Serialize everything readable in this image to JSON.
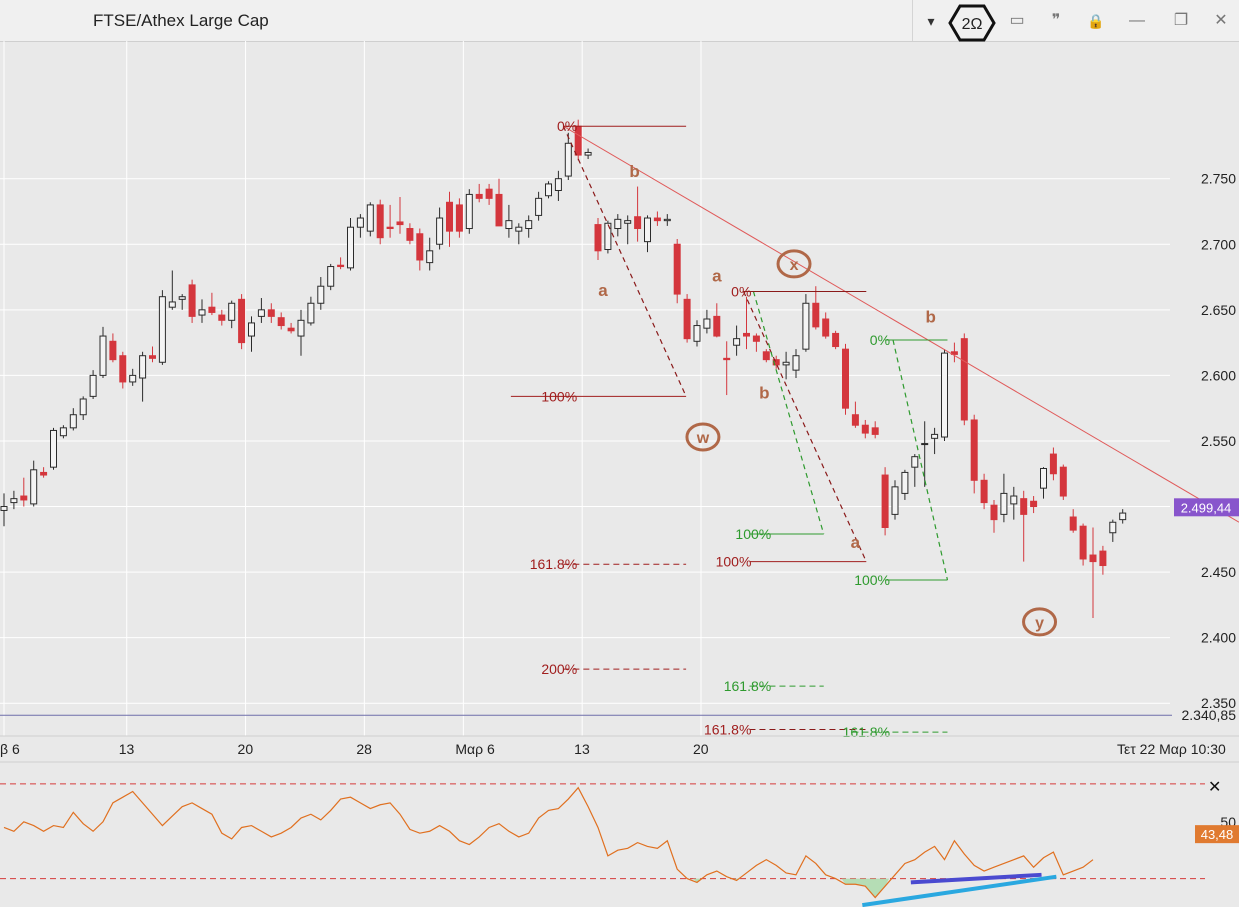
{
  "window": {
    "title": "FTSE/Athex Large Cap",
    "controls": [
      {
        "name": "dropdown",
        "glyph": "▾"
      },
      {
        "name": "2omega",
        "glyph": "2Ω"
      },
      {
        "name": "panel",
        "glyph": "▭"
      },
      {
        "name": "quote",
        "glyph": "❞"
      },
      {
        "name": "lock",
        "glyph": "🔒"
      },
      {
        "name": "minimize",
        "glyph": "—"
      },
      {
        "name": "restore",
        "glyph": "❐"
      },
      {
        "name": "close",
        "glyph": "✕"
      }
    ]
  },
  "chart_data": [
    {
      "type": "candlestick",
      "title": "FTSE/Athex Large Cap",
      "ylim": [
        2.325,
        2.855
      ],
      "y_ticks": [
        "2.750",
        "2.700",
        "2.650",
        "2.600",
        "2.550",
        "2.500",
        "2.450",
        "2.400",
        "2.350"
      ],
      "y_tick_values": [
        2.75,
        2.7,
        2.65,
        2.6,
        2.55,
        2.5,
        2.45,
        2.4,
        2.35
      ],
      "x_ticks": [
        "β 6",
        "13",
        "20",
        "28",
        "Μαρ 6",
        "13",
        "20"
      ],
      "x_tick_candle_index": [
        0,
        12.4,
        24.4,
        36.4,
        46.4,
        58.4,
        70.4
      ],
      "x_end_label": "Τετ 22 Μαρ 10:30",
      "current_price": {
        "label": "2.499,44",
        "value": 2.4994,
        "color": "#8855cc"
      },
      "horizontal_line": {
        "label": "2.340,85",
        "value": 2.34085,
        "color": "#6f6faa"
      },
      "colors": {
        "up": "#2b2b2b",
        "down": "#d4363d",
        "background": "#e9e9e9",
        "grid": "#ffffff"
      },
      "candles": [
        [
          2.497,
          2.51,
          2.485,
          2.5
        ],
        [
          2.503,
          2.512,
          2.498,
          2.506
        ],
        [
          2.508,
          2.522,
          2.5,
          2.505
        ],
        [
          2.502,
          2.535,
          2.5,
          2.528
        ],
        [
          2.526,
          2.53,
          2.522,
          2.524
        ],
        [
          2.53,
          2.56,
          2.528,
          2.558
        ],
        [
          2.554,
          2.562,
          2.552,
          2.56
        ],
        [
          2.56,
          2.575,
          2.558,
          2.57
        ],
        [
          2.57,
          2.584,
          2.566,
          2.582
        ],
        [
          2.584,
          2.604,
          2.582,
          2.6
        ],
        [
          2.6,
          2.637,
          2.598,
          2.63
        ],
        [
          2.626,
          2.632,
          2.61,
          2.612
        ],
        [
          2.615,
          2.618,
          2.59,
          2.595
        ],
        [
          2.595,
          2.605,
          2.592,
          2.6
        ],
        [
          2.598,
          2.618,
          2.58,
          2.615
        ],
        [
          2.615,
          2.622,
          2.61,
          2.613
        ],
        [
          2.61,
          2.665,
          2.608,
          2.66
        ],
        [
          2.652,
          2.68,
          2.65,
          2.656
        ],
        [
          2.658,
          2.662,
          2.65,
          2.66
        ],
        [
          2.669,
          2.673,
          2.64,
          2.645
        ],
        [
          2.646,
          2.658,
          2.64,
          2.65
        ],
        [
          2.652,
          2.663,
          2.646,
          2.648
        ],
        [
          2.646,
          2.65,
          2.638,
          2.642
        ],
        [
          2.642,
          2.657,
          2.636,
          2.655
        ],
        [
          2.658,
          2.662,
          2.62,
          2.625
        ],
        [
          2.63,
          2.645,
          2.618,
          2.64
        ],
        [
          2.645,
          2.659,
          2.64,
          2.65
        ],
        [
          2.65,
          2.655,
          2.64,
          2.645
        ],
        [
          2.644,
          2.648,
          2.635,
          2.638
        ],
        [
          2.636,
          2.64,
          2.632,
          2.634
        ],
        [
          2.63,
          2.65,
          2.615,
          2.642
        ],
        [
          2.64,
          2.66,
          2.638,
          2.655
        ],
        [
          2.655,
          2.675,
          2.65,
          2.668
        ],
        [
          2.668,
          2.685,
          2.665,
          2.683
        ],
        [
          2.684,
          2.69,
          2.681,
          2.683
        ],
        [
          2.682,
          2.72,
          2.68,
          2.713
        ],
        [
          2.713,
          2.723,
          2.705,
          2.72
        ],
        [
          2.71,
          2.732,
          2.706,
          2.73
        ],
        [
          2.73,
          2.734,
          2.7,
          2.705
        ],
        [
          2.713,
          2.73,
          2.705,
          2.712
        ],
        [
          2.717,
          2.736,
          2.708,
          2.715
        ],
        [
          2.712,
          2.716,
          2.7,
          2.703
        ],
        [
          2.708,
          2.712,
          2.68,
          2.688
        ],
        [
          2.686,
          2.705,
          2.68,
          2.695
        ],
        [
          2.7,
          2.728,
          2.696,
          2.72
        ],
        [
          2.732,
          2.74,
          2.698,
          2.71
        ],
        [
          2.73,
          2.735,
          2.705,
          2.71
        ],
        [
          2.712,
          2.742,
          2.708,
          2.738
        ],
        [
          2.738,
          2.746,
          2.732,
          2.735
        ],
        [
          2.742,
          2.746,
          2.73,
          2.735
        ],
        [
          2.738,
          2.75,
          2.716,
          2.714
        ],
        [
          2.712,
          2.73,
          2.705,
          2.718
        ],
        [
          2.71,
          2.716,
          2.7,
          2.713
        ],
        [
          2.712,
          2.722,
          2.705,
          2.718
        ],
        [
          2.722,
          2.74,
          2.718,
          2.735
        ],
        [
          2.737,
          2.748,
          2.735,
          2.746
        ],
        [
          2.741,
          2.756,
          2.733,
          2.75
        ],
        [
          2.752,
          2.785,
          2.749,
          2.777
        ],
        [
          2.79,
          2.795,
          2.764,
          2.768
        ],
        [
          2.768,
          2.773,
          2.765,
          2.77
        ],
        [
          2.715,
          2.72,
          2.688,
          2.695
        ],
        [
          2.696,
          2.718,
          2.693,
          2.716
        ],
        [
          2.712,
          2.723,
          2.706,
          2.719
        ],
        [
          2.716,
          2.722,
          2.7,
          2.718
        ],
        [
          2.721,
          2.744,
          2.702,
          2.712
        ],
        [
          2.702,
          2.722,
          2.694,
          2.72
        ],
        [
          2.72,
          2.725,
          2.714,
          2.718
        ],
        [
          2.718,
          2.723,
          2.714,
          2.719
        ],
        [
          2.7,
          2.704,
          2.655,
          2.662
        ],
        [
          2.658,
          2.662,
          2.625,
          2.628
        ],
        [
          2.626,
          2.642,
          2.622,
          2.638
        ],
        [
          2.636,
          2.65,
          2.632,
          2.643
        ],
        [
          2.645,
          2.655,
          2.629,
          2.63
        ],
        [
          2.613,
          2.626,
          2.585,
          2.612
        ],
        [
          2.623,
          2.638,
          2.615,
          2.628
        ],
        [
          2.632,
          2.66,
          2.62,
          2.63
        ],
        [
          2.63,
          2.632,
          2.618,
          2.626
        ],
        [
          2.618,
          2.62,
          2.61,
          2.612
        ],
        [
          2.612,
          2.615,
          2.605,
          2.608
        ],
        [
          2.608,
          2.618,
          2.597,
          2.61
        ],
        [
          2.604,
          2.62,
          2.598,
          2.615
        ],
        [
          2.62,
          2.662,
          2.618,
          2.655
        ],
        [
          2.655,
          2.668,
          2.635,
          2.637
        ],
        [
          2.643,
          2.648,
          2.628,
          2.63
        ],
        [
          2.632,
          2.634,
          2.62,
          2.622
        ],
        [
          2.62,
          2.624,
          2.57,
          2.575
        ],
        [
          2.57,
          2.58,
          2.56,
          2.562
        ],
        [
          2.562,
          2.566,
          2.552,
          2.556
        ],
        [
          2.56,
          2.565,
          2.552,
          2.555
        ],
        [
          2.524,
          2.53,
          2.478,
          2.484
        ],
        [
          2.494,
          2.52,
          2.49,
          2.515
        ],
        [
          2.51,
          2.528,
          2.505,
          2.526
        ],
        [
          2.53,
          2.54,
          2.515,
          2.538
        ],
        [
          2.548,
          2.565,
          2.515,
          2.548
        ],
        [
          2.552,
          2.56,
          2.54,
          2.555
        ],
        [
          2.553,
          2.62,
          2.55,
          2.617
        ],
        [
          2.618,
          2.625,
          2.61,
          2.616
        ],
        [
          2.628,
          2.632,
          2.562,
          2.566
        ],
        [
          2.566,
          2.57,
          2.51,
          2.52
        ],
        [
          2.52,
          2.525,
          2.498,
          2.503
        ],
        [
          2.501,
          2.505,
          2.48,
          2.49
        ],
        [
          2.494,
          2.525,
          2.488,
          2.51
        ],
        [
          2.502,
          2.515,
          2.49,
          2.508
        ],
        [
          2.506,
          2.512,
          2.458,
          2.494
        ],
        [
          2.504,
          2.508,
          2.495,
          2.5
        ],
        [
          2.514,
          2.53,
          2.506,
          2.529
        ],
        [
          2.54,
          2.545,
          2.52,
          2.525
        ],
        [
          2.53,
          2.532,
          2.505,
          2.508
        ],
        [
          2.492,
          2.498,
          2.48,
          2.482
        ],
        [
          2.485,
          2.487,
          2.455,
          2.46
        ],
        [
          2.463,
          2.484,
          2.415,
          2.458
        ],
        [
          2.466,
          2.47,
          2.448,
          2.455
        ],
        [
          2.48,
          2.49,
          2.473,
          2.488
        ],
        [
          2.49,
          2.498,
          2.487,
          2.495
        ]
      ],
      "annotations": [
        {
          "text": "0%",
          "x": 58.2,
          "y": 2.79,
          "color": "#a01e1e"
        },
        {
          "text": "100%",
          "x": 58.2,
          "y": 2.584,
          "color": "#a01e1e"
        },
        {
          "text": "161.8%",
          "x": 58.2,
          "y": 2.456,
          "color": "#a01e1e"
        },
        {
          "text": "200%",
          "x": 58.2,
          "y": 2.376,
          "color": "#a01e1e"
        },
        {
          "text": "0%",
          "x": 75.8,
          "y": 2.664,
          "color": "#a01e1e"
        },
        {
          "text": "100%",
          "x": 75.8,
          "y": 2.458,
          "color": "#a01e1e"
        },
        {
          "text": "161.8%",
          "x": 75.8,
          "y": 2.33,
          "color": "#a01e1e"
        },
        {
          "text": "0%",
          "x": 89.8,
          "y": 2.627,
          "color": "#2e9a2e"
        },
        {
          "text": "100%",
          "x": 89.8,
          "y": 2.444,
          "color": "#2e9a2e"
        },
        {
          "text": "161.8%",
          "x": 89.8,
          "y": 2.328,
          "color": "#2e9a2e"
        },
        {
          "text": "100%",
          "x": 77.8,
          "y": 2.479,
          "color": "#2e9a2e"
        },
        {
          "text": "161.8%",
          "x": 77.8,
          "y": 2.363,
          "color": "#2e9a2e"
        },
        {
          "text": "b",
          "x": 63.7,
          "y": 2.756,
          "color": "#b06848"
        },
        {
          "text": "a",
          "x": 60.5,
          "y": 2.665,
          "color": "#b06848"
        },
        {
          "text": "a",
          "x": 72.0,
          "y": 2.676,
          "color": "#b06848"
        },
        {
          "text": "b",
          "x": 76.8,
          "y": 2.587,
          "color": "#b06848"
        },
        {
          "text": "b",
          "x": 93.6,
          "y": 2.645,
          "color": "#b06848"
        },
        {
          "text": "a",
          "x": 86.0,
          "y": 2.473,
          "color": "#b06848"
        },
        {
          "text": "w",
          "x": 70.6,
          "y": 2.553,
          "color": "#b06848",
          "circled": true
        },
        {
          "text": "x",
          "x": 79.8,
          "y": 2.685,
          "color": "#b06848",
          "circled": true
        },
        {
          "text": "y",
          "x": 104.6,
          "y": 2.412,
          "color": "#b06848",
          "circled": true
        }
      ]
    },
    {
      "type": "line",
      "series": [
        {
          "values": [
            47,
            45,
            50,
            48,
            45,
            48,
            47,
            55,
            49,
            45,
            50,
            60,
            63,
            66,
            60,
            54,
            48,
            53,
            58,
            60,
            57,
            54,
            44,
            41,
            47,
            48,
            45,
            42,
            44,
            47,
            52,
            54,
            51,
            56,
            62,
            63,
            60,
            57,
            59,
            60,
            54,
            46,
            44,
            45,
            48,
            45,
            40,
            38,
            42,
            47,
            49,
            45,
            42,
            44,
            52,
            56,
            57,
            62,
            68,
            58,
            47,
            32,
            35,
            36,
            39,
            37,
            36,
            40,
            25,
            20,
            18,
            22,
            24,
            21,
            19,
            23,
            27,
            30,
            27,
            23,
            22,
            32,
            28,
            22,
            20,
            17,
            17,
            16,
            10,
            16,
            22,
            28,
            30,
            34,
            37,
            30,
            40,
            33,
            27,
            24,
            26,
            28,
            30,
            32,
            26,
            31,
            34,
            22,
            24,
            26,
            30
          ],
          "color": "#e07020"
        }
      ],
      "ylim": [
        5,
        80
      ],
      "y_ticks": [
        "50"
      ],
      "y_tick_values": [
        50
      ],
      "bands": [
        70,
        20
      ],
      "current_value": {
        "label": "43,48",
        "value": 43.48,
        "color": "#e07a30"
      }
    }
  ]
}
